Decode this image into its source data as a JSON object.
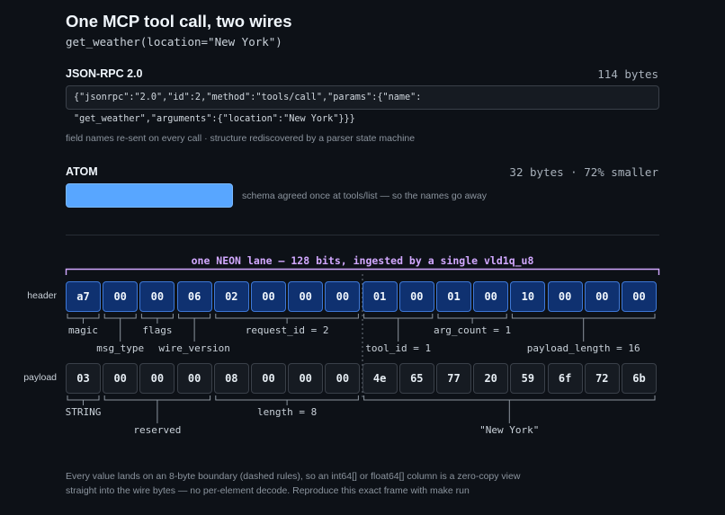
{
  "title": "One MCP tool call, two wires",
  "subtitle": "get_weather(location=\"New York\")",
  "jsonrpc": {
    "label": "JSON-RPC 2.0",
    "size": "114 bytes",
    "line1": "{\"jsonrpc\":\"2.0\",\"id\":2,\"method\":\"tools/call\",\"params\":{\"name\":",
    "line2": "\"get_weather\",\"arguments\":{\"location\":\"New York\"}}}",
    "note": "field names re-sent on every call · structure rediscovered by a parser state machine"
  },
  "atom": {
    "label": "ATOM",
    "size": "32 bytes · 72% smaller",
    "note": "schema agreed once at tools/list — so the names go away",
    "bar_color": "#58a6ff",
    "relative_size": 0.28
  },
  "lane": {
    "title": "one NEON lane — 128 bits, ingested by a single vld1q_u8"
  },
  "header": {
    "label": "header",
    "bytes": [
      "a7",
      "00",
      "00",
      "06",
      "02",
      "00",
      "00",
      "00",
      "01",
      "00",
      "01",
      "00",
      "10",
      "00",
      "00",
      "00"
    ],
    "fields": [
      {
        "name": "magic",
        "start": 0,
        "end": 0,
        "row": 0
      },
      {
        "name": "msg_type",
        "start": 1,
        "end": 1,
        "row": 1
      },
      {
        "name": "flags",
        "start": 2,
        "end": 2,
        "row": 0
      },
      {
        "name": "wire_version",
        "start": 3,
        "end": 3,
        "row": 1
      },
      {
        "name": "request_id = 2",
        "start": 4,
        "end": 7,
        "row": 0
      },
      {
        "name": "tool_id = 1",
        "start": 8,
        "end": 9,
        "row": 1
      },
      {
        "name": "arg_count = 1",
        "start": 10,
        "end": 11,
        "row": 0
      },
      {
        "name": "payload_length = 16",
        "start": 12,
        "end": 15,
        "row": 1
      }
    ]
  },
  "payload": {
    "label": "payload",
    "bytes": [
      "03",
      "00",
      "00",
      "00",
      "08",
      "00",
      "00",
      "00",
      "4e",
      "65",
      "77",
      "20",
      "59",
      "6f",
      "72",
      "6b"
    ],
    "fields": [
      {
        "name": "STRING",
        "start": 0,
        "end": 0,
        "row": 0
      },
      {
        "name": "reserved",
        "start": 1,
        "end": 3,
        "row": 1
      },
      {
        "name": "length = 8",
        "start": 4,
        "end": 7,
        "row": 0
      },
      {
        "name": "\"New York\"",
        "start": 8,
        "end": 15,
        "row": 1
      }
    ]
  },
  "footer": {
    "line1": "Every value lands on an 8-byte boundary (dashed rules), so an int64[] or float64[] column is a zero-copy view",
    "line2": "straight into the wire bytes — no per-element decode. Reproduce this exact frame with make run"
  },
  "colors": {
    "header_cell": "#0f3170",
    "header_border": "#3d77d6",
    "lane_bracket": "#d2a8ff",
    "bracket_line": "#8b949e"
  }
}
